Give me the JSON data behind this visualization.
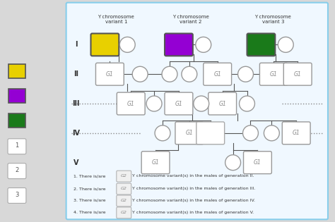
{
  "bg_color": "#f5f5f5",
  "chart_bg": "#f0f8ff",
  "outer_bg": "#d8d8d8",
  "border_color": "#87ceeb",
  "title_variants": [
    "Y chromosome\nvariant 1",
    "Y chromosome\nvariant 2",
    "Y chromosome\nvariant 3"
  ],
  "variant_colors": [
    "#e8d000",
    "#9400D3",
    "#1a7a1a"
  ],
  "gen_labels": [
    "I",
    "II",
    "III",
    "IV",
    "V"
  ],
  "questions_text": [
    "Y chromosome variant(s) in the males of generation II.",
    "Y chromosome variant(s) in the males of generation III.",
    "Y chromosome variant(s) in the males of generation IV.",
    "Y chromosome variant(s) in the males of generation V."
  ]
}
